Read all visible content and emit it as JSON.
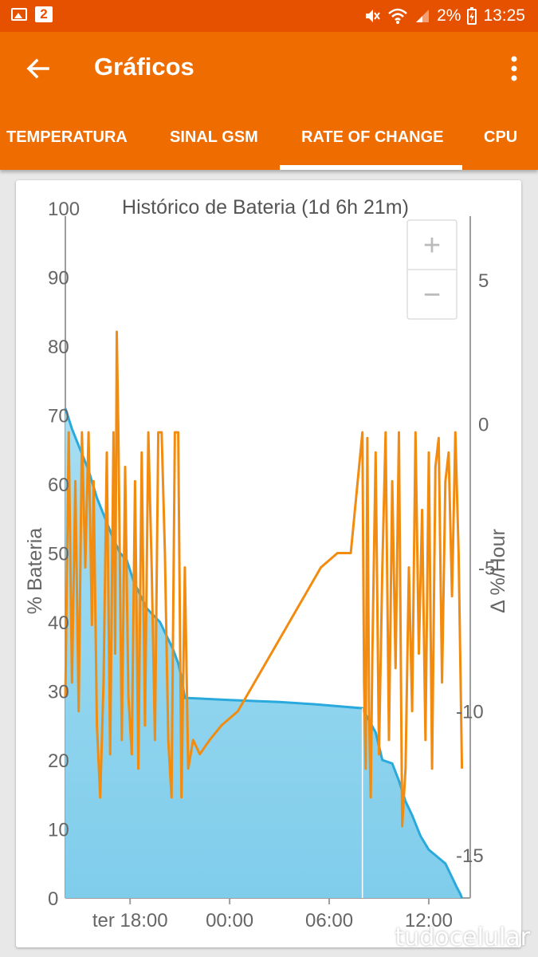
{
  "status": {
    "notification_count": "2",
    "battery": "2%",
    "time": "13:25"
  },
  "appbar": {
    "title": "Gráficos"
  },
  "tabs": [
    {
      "label": "TEMPERATURA"
    },
    {
      "label": "SINAL GSM"
    },
    {
      "label": "RATE OF CHANGE",
      "active": true
    },
    {
      "label": "CPU"
    }
  ],
  "watermark": "tudocelular",
  "colors": {
    "battery_line": "#29a9dc",
    "battery_fill": "#8fd4ee",
    "rate_line": "#f28c10",
    "accent": "#ef6c00"
  },
  "chart_data": {
    "type": "area",
    "title": "Histórico de Bateria (1d 6h 21m)",
    "ylabel": "% Bateria",
    "y2label": "Δ %/Hour",
    "ylim": [
      0,
      100
    ],
    "y2lim": [
      -16.5,
      7.5
    ],
    "y_ticks": [
      0,
      10,
      20,
      30,
      40,
      50,
      60,
      70,
      80,
      90,
      100
    ],
    "y2_ticks": [
      5,
      0,
      -5,
      -10,
      -15
    ],
    "x_ticks": [
      {
        "label": "ter 18:00",
        "hour": 18
      },
      {
        "label": "00:00",
        "hour": 24
      },
      {
        "label": "06:00",
        "hour": 30
      },
      {
        "label": "12:00",
        "hour": 36
      }
    ],
    "xlim": [
      14.1,
      38.5
    ],
    "zoom_controls": [
      "+",
      "−"
    ],
    "series": [
      {
        "axis": "left",
        "x": [
          14.1,
          14.5,
          15.0,
          15.5,
          16.0,
          16.5,
          17.0,
          17.4,
          17.8,
          18.2,
          18.6,
          19.0,
          19.4,
          19.8,
          20.2,
          20.6,
          20.9,
          21.1,
          21.3,
          24.0,
          27.0,
          29.0,
          32.0,
          32.8,
          33.2,
          33.8,
          34.2,
          34.6,
          35.0,
          35.5,
          36.0,
          36.5,
          37.0,
          37.4,
          37.7,
          37.9,
          38.0
        ],
        "y": [
          71,
          68,
          65,
          62,
          58,
          55,
          52,
          50,
          49,
          46,
          44,
          42,
          41,
          40,
          38,
          36,
          34,
          32,
          29,
          28.7,
          28.4,
          28.1,
          27.5,
          24,
          20,
          19.5,
          17,
          14,
          12,
          9,
          7,
          6,
          5,
          3,
          1.5,
          0.6,
          0
        ]
      },
      {
        "axis": "right",
        "x": [
          14.1,
          14.3,
          14.5,
          14.7,
          14.9,
          15.1,
          15.3,
          15.5,
          15.7,
          15.8,
          16.0,
          16.2,
          16.4,
          16.6,
          16.8,
          17.0,
          17.1,
          17.2,
          17.3,
          17.5,
          17.7,
          17.9,
          18.1,
          18.3,
          18.5,
          18.7,
          18.9,
          19.1,
          19.3,
          19.5,
          19.7,
          19.9,
          20.1,
          20.3,
          20.5,
          20.7,
          20.9,
          21.1,
          21.3,
          21.5,
          21.8,
          22.2,
          22.8,
          23.5,
          24.5,
          25.5,
          26.5,
          27.5,
          28.5,
          29.5,
          30.5,
          31.3,
          32.0,
          32.1,
          32.2,
          32.3,
          32.4,
          32.5,
          32.6,
          32.8,
          33.0,
          33.2,
          33.4,
          33.6,
          33.8,
          34.0,
          34.2,
          34.4,
          34.6,
          34.8,
          35.0,
          35.2,
          35.4,
          35.6,
          35.8,
          36.0,
          36.2,
          36.4,
          36.6,
          36.8,
          37.0,
          37.2,
          37.4,
          37.6,
          37.8,
          38.0
        ],
        "y": [
          -9.5,
          -0.3,
          -9.0,
          -2.0,
          -10.0,
          -0.3,
          -5.0,
          -0.3,
          -7.0,
          -2.0,
          -10.5,
          -13.0,
          -9.0,
          -1.0,
          -11.5,
          -0.3,
          -8.0,
          3.2,
          -0.5,
          -11.0,
          -1.5,
          -9.5,
          -11.5,
          -2.0,
          -12.0,
          -1.0,
          -10.5,
          -0.3,
          -5.0,
          -11.0,
          -0.3,
          -0.3,
          -4.5,
          -11.0,
          -13.0,
          -0.3,
          -0.3,
          -13.0,
          -5.0,
          -12.0,
          -11.0,
          -11.5,
          -11.0,
          -10.5,
          -10.0,
          -9.0,
          -8.0,
          -7.0,
          -6.0,
          -5.0,
          -4.5,
          -4.5,
          -0.3,
          -9.0,
          -12.0,
          -0.5,
          -10.0,
          -13.0,
          -8.0,
          -1.0,
          -11.5,
          -5.0,
          -0.3,
          -11.0,
          -2.0,
          -8.5,
          -0.3,
          -14.0,
          -12.0,
          -5.0,
          -10.0,
          -0.3,
          -8.0,
          -3.0,
          -11.0,
          -1.0,
          -12.0,
          -1.5,
          -0.5,
          -9.0,
          -2.0,
          -1.0,
          -6.0,
          -0.3,
          -4.5,
          -12.0
        ]
      }
    ]
  }
}
